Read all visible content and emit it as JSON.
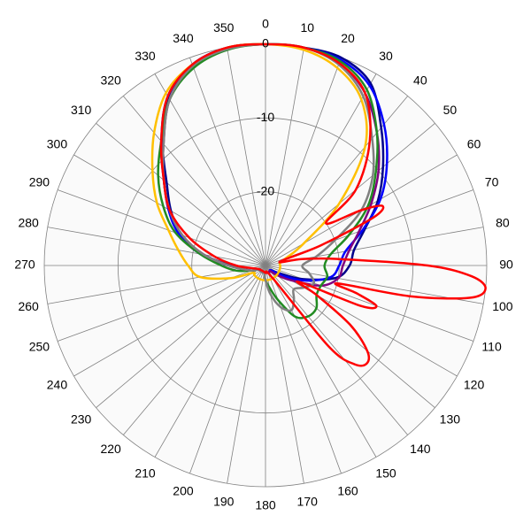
{
  "chart_data": {
    "type": "polar",
    "angle_ticks": [
      0,
      10,
      20,
      30,
      40,
      50,
      60,
      70,
      80,
      90,
      100,
      110,
      120,
      130,
      140,
      150,
      160,
      170,
      180,
      190,
      200,
      210,
      220,
      230,
      240,
      250,
      260,
      270,
      280,
      290,
      300,
      310,
      320,
      330,
      340,
      350
    ],
    "rlim": [
      -30,
      0
    ],
    "rticks": [
      -20,
      -10,
      0
    ],
    "grid": true,
    "series": [
      {
        "color": "#00008b",
        "theta": [
          0,
          10,
          20,
          30,
          40,
          50,
          60,
          70,
          80,
          90,
          100,
          110,
          120,
          130,
          140,
          150,
          160,
          170,
          180,
          190,
          200,
          210,
          220,
          230,
          240,
          250,
          260,
          270,
          280,
          290,
          300,
          310,
          320,
          330,
          340,
          350
        ],
        "values": [
          0,
          0,
          0,
          -1.5,
          -5.6,
          -9.2,
          -12.4,
          -15.7,
          -17.8,
          -18.6,
          -20.3,
          -24.6,
          -28,
          -29,
          -29,
          -29,
          -29,
          -29,
          -29,
          -29,
          -29,
          -29,
          -29,
          -29,
          -29,
          -28,
          -27,
          -25.2,
          -21.5,
          -17.9,
          -15.2,
          -12.5,
          -8.3,
          -3.6,
          -1,
          0
        ]
      },
      {
        "color": "#0000ff",
        "theta": [
          0,
          10,
          20,
          30,
          40,
          50,
          60,
          70,
          80,
          90,
          100,
          110,
          120,
          130,
          140,
          150,
          160,
          170,
          180,
          190,
          200,
          210,
          220,
          230,
          240,
          250,
          260,
          270,
          280,
          290,
          300,
          310,
          320,
          330,
          340,
          350
        ],
        "values": [
          0,
          0,
          -0.3,
          -1.8,
          -5,
          -8.5,
          -12,
          -16,
          -19,
          -20,
          -21,
          -24,
          -27,
          -29,
          -29,
          -29,
          -29,
          -29,
          -29,
          -29,
          -29,
          -29,
          -29,
          -29,
          -29,
          -28,
          -27,
          -25,
          -21,
          -17.5,
          -14.8,
          -12,
          -8,
          -3.5,
          -1,
          0
        ]
      },
      {
        "color": "#800080",
        "theta": [
          0,
          10,
          20,
          30,
          40,
          50,
          60,
          70,
          80,
          90,
          100,
          110,
          120,
          130,
          140,
          150,
          160,
          170,
          180,
          190,
          200,
          210,
          220,
          230,
          240,
          250,
          260,
          270,
          280,
          290,
          300,
          310,
          320,
          330,
          340,
          350
        ],
        "values": [
          0,
          0,
          -0.8,
          -3,
          -6.5,
          -10,
          -13.5,
          -16.5,
          -18.5,
          -19.5,
          -20,
          -22,
          -26,
          -28,
          -29,
          -29,
          -29,
          -29,
          -29,
          -29,
          -29,
          -29,
          -29,
          -29,
          -29,
          -28,
          -27,
          -25,
          -21.5,
          -18,
          -15,
          -12,
          -8.5,
          -4,
          -1.2,
          -0.2
        ]
      },
      {
        "color": "#228b22",
        "theta": [
          0,
          10,
          20,
          30,
          40,
          50,
          60,
          70,
          80,
          90,
          100,
          110,
          120,
          130,
          140,
          150,
          160,
          170,
          180,
          190,
          200,
          210,
          220,
          230,
          240,
          250,
          260,
          270,
          280,
          290,
          300,
          310,
          320,
          330,
          340,
          350
        ],
        "values": [
          0,
          0,
          -0.5,
          -2.5,
          -6.5,
          -10.5,
          -14,
          -18,
          -21,
          -22,
          -21.5,
          -22,
          -22,
          -21,
          -21,
          -22,
          -25,
          -27,
          -28,
          -29,
          -29,
          -29,
          -29,
          -29,
          -29,
          -28,
          -26,
          -24,
          -21,
          -17,
          -14,
          -11,
          -8,
          -4,
          -1.5,
          -0.3
        ]
      },
      {
        "color": "#ffc000",
        "theta": [
          0,
          10,
          20,
          30,
          40,
          50,
          60,
          70,
          80,
          90,
          100,
          110,
          120,
          130,
          140,
          150,
          160,
          170,
          180,
          190,
          200,
          210,
          220,
          230,
          240,
          250,
          260,
          270,
          280,
          290,
          300,
          310,
          320,
          330,
          340,
          350
        ],
        "values": [
          0,
          -0.3,
          -1.5,
          -4,
          -9,
          -17,
          -24,
          -27,
          -28,
          -28,
          -28,
          -28,
          -28,
          -28,
          -28,
          -28,
          -28,
          -28,
          -28,
          -28,
          -28,
          -28,
          -28,
          -28,
          -28,
          -25,
          -21,
          -19.5,
          -18,
          -16,
          -13,
          -10,
          -6.5,
          -3,
          -1,
          0
        ]
      },
      {
        "color": "#808080",
        "theta": [
          0,
          10,
          20,
          30,
          40,
          50,
          60,
          70,
          80,
          90,
          100,
          110,
          120,
          130,
          140,
          150,
          160,
          170,
          180,
          190,
          200,
          210,
          220,
          230,
          240,
          250,
          260,
          270,
          280,
          290,
          300,
          310,
          320,
          330,
          340,
          350
        ],
        "values": [
          0,
          0,
          -1,
          -3.5,
          -7.5,
          -11,
          -15,
          -20,
          -23,
          -25,
          -24,
          -23,
          -24,
          -25,
          -24,
          -23,
          -24,
          -26,
          -28,
          -29,
          -29,
          -29,
          -29,
          -29,
          -29,
          -28,
          -27,
          -25,
          -21.5,
          -18,
          -15,
          -12,
          -8.5,
          -4,
          -1.2,
          -0.2
        ]
      },
      {
        "color": "#ff0000",
        "theta": [
          0,
          10,
          20,
          30,
          40,
          50,
          55,
          60,
          63,
          66,
          70,
          75,
          80,
          85,
          90,
          93,
          96,
          99,
          102,
          104,
          107,
          110,
          113,
          116,
          120,
          125,
          130,
          134,
          138,
          142,
          150,
          180,
          240,
          260,
          270,
          280,
          290,
          300,
          310,
          320,
          330,
          340,
          350
        ],
        "values": [
          0,
          0,
          -0.8,
          -3,
          -8,
          -14,
          -20,
          -15,
          -12.2,
          -14,
          -22,
          -28,
          -25,
          -20,
          -8,
          -2,
          0,
          -2,
          -10,
          -20,
          -17,
          -14,
          -16,
          -25,
          -22,
          -16,
          -12,
          -10.9,
          -12,
          -16,
          -28,
          -29,
          -29,
          -28,
          -26,
          -23,
          -19,
          -15,
          -12,
          -8,
          -3.5,
          -1,
          0
        ]
      }
    ]
  }
}
